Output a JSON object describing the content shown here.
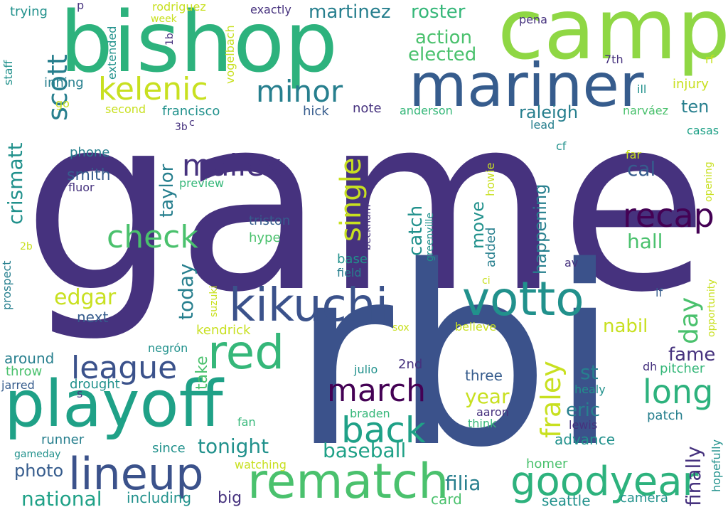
{
  "cloud": {
    "words": [
      "game",
      "rbi",
      "bishop",
      "camp",
      "mariner",
      "playoff",
      "rematch",
      "lineup",
      "votto",
      "kikuchi",
      "red",
      "goodyear",
      "league",
      "march",
      "back",
      "long",
      "recap",
      "check",
      "kelenic",
      "minor",
      "mallex",
      "scott",
      "single",
      "fraley",
      "crismatt",
      "martinez",
      "roster",
      "action",
      "elected",
      "day",
      "raleigh",
      "ten",
      "injury",
      "note",
      "hick",
      "francisco",
      "second",
      "go",
      "inning",
      "staff",
      "rf",
      "7th",
      "pena",
      "exactly",
      "rodriguez",
      "week",
      "p",
      "trying",
      "extended",
      "1b",
      "vogelbach",
      "anderson",
      "narváez",
      "ill",
      "lead",
      "casas",
      "cf",
      "far",
      "opening",
      "howie",
      "happening",
      "catch",
      "move",
      "added",
      "cal",
      "hall",
      "nabil",
      "fame",
      "st",
      "eric",
      "year",
      "filia",
      "finally",
      "advance",
      "baseball",
      "tonight",
      "since",
      "photo",
      "national",
      "including",
      "big",
      "seattle",
      "card",
      "camera",
      "hopefully",
      "patch",
      "pitcher",
      "dh",
      "healy",
      "lewis",
      "homer",
      "watching",
      "gameday",
      "runner",
      "fan",
      "jarred",
      "throw",
      "around",
      "drought",
      "s",
      "next",
      "edgar",
      "today",
      "taylor",
      "take",
      "kendrick",
      "negrón",
      "julio",
      "2nd",
      "braden",
      "aaron",
      "think",
      "three",
      "sox",
      "believe",
      "ci",
      "lf",
      "opportunity",
      "av",
      "field",
      "base",
      "beckham",
      "greenville",
      "triston",
      "hype",
      "smith",
      "fluor",
      "phone",
      "preview",
      "3b",
      "c",
      "prospect",
      "2b",
      "suzuki"
    ]
  },
  "colors": {
    "indigo": "#46327e",
    "navy": "#3b528b",
    "slate": "#365c8d",
    "teal": "#277f8e",
    "teal2": "#21918c",
    "green": "#1fa187",
    "green2": "#35b779",
    "lime": "#4ac16d",
    "lime2": "#8fd744",
    "yellow": "#c8e020",
    "purple": "#440154",
    "yellow2": "#dde318"
  }
}
